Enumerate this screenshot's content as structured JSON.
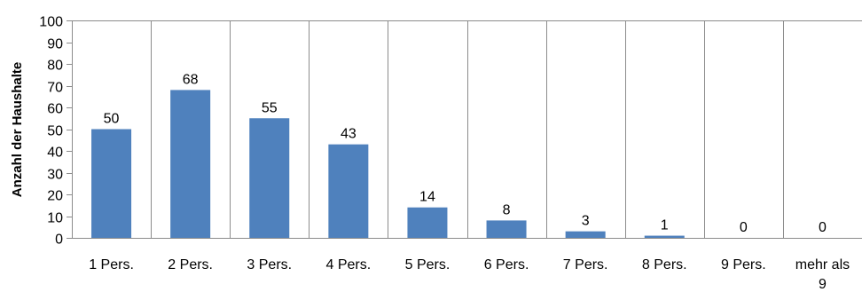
{
  "chart_data": {
    "type": "bar",
    "categories": [
      "1 Pers.",
      "2 Pers.",
      "3 Pers.",
      "4 Pers.",
      "5 Pers.",
      "6 Pers.",
      "7 Pers.",
      "8 Pers.",
      "9 Pers.",
      "mehr als 9"
    ],
    "values": [
      50,
      68,
      55,
      43,
      14,
      8,
      3,
      1,
      0,
      0
    ],
    "title": "",
    "xlabel": "",
    "ylabel": "Anzahl der Haushalte",
    "ylim": [
      0,
      100
    ],
    "yticks": [
      0,
      10,
      20,
      30,
      40,
      50,
      60,
      70,
      80,
      90,
      100
    ],
    "grid": "vertical category separators and top frame line",
    "data_labels": true,
    "bar_color": "#4f81bd",
    "grid_color": "#8c8c8c"
  }
}
